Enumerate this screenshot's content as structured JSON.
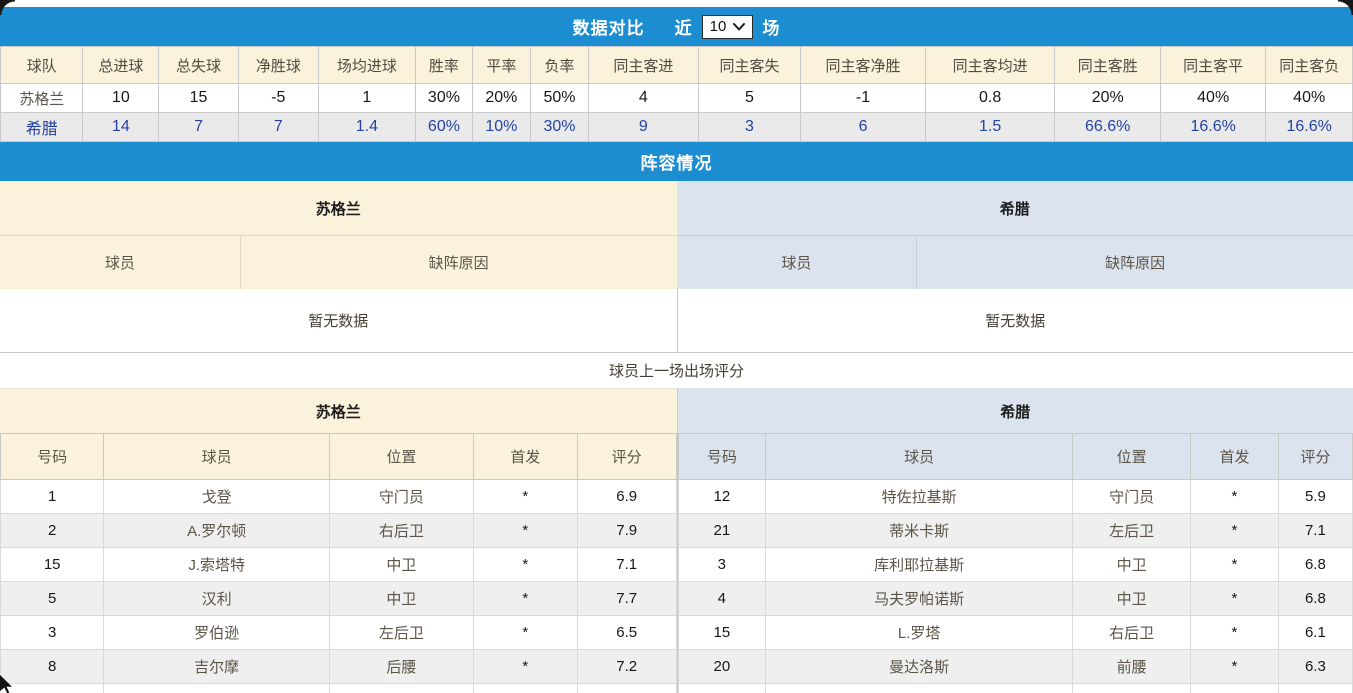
{
  "colors": {
    "accent_blue": "#1d8dd2",
    "beige_bg": "#fbf2dc",
    "bluegray_bg": "#dbe4ee",
    "alt_row_gray": "#efefef",
    "greece_row_bg": "#eaeaea",
    "greece_text_blue": "#2443a2",
    "header_text": "#514b40",
    "muted_text": "#5c5448",
    "border": "#c9c9c9"
  },
  "top_bar": {
    "title": "数据对比",
    "near_label": "近",
    "rounds_value": "10",
    "rounds_suffix": "场"
  },
  "comparison_table": {
    "headers": [
      "球队",
      "总进球",
      "总失球",
      "净胜球",
      "场均进球",
      "胜率",
      "平率",
      "负率",
      "同主客进",
      "同主客失",
      "同主客净胜",
      "同主客均进",
      "同主客胜",
      "同主客平",
      "同主客负"
    ],
    "rows": [
      {
        "team": "苏格兰",
        "values": [
          "10",
          "15",
          "-5",
          "1",
          "30%",
          "20%",
          "50%",
          "4",
          "5",
          "-1",
          "0.8",
          "20%",
          "40%",
          "40%"
        ]
      },
      {
        "team": "希腊",
        "values": [
          "14",
          "7",
          "7",
          "1.4",
          "60%",
          "10%",
          "30%",
          "9",
          "3",
          "6",
          "1.5",
          "66.6%",
          "16.6%",
          "16.6%"
        ]
      }
    ]
  },
  "lineup_section": {
    "title": "阵容情况",
    "left": {
      "team": "苏格兰",
      "columns": [
        "球员",
        "缺阵原因"
      ],
      "empty_text": "暂无数据"
    },
    "right": {
      "team": "希腊",
      "columns": [
        "球员",
        "缺阵原因"
      ],
      "empty_text": "暂无数据"
    }
  },
  "ratings_section": {
    "title": "球员上一场出场评分",
    "left": {
      "team": "苏格兰",
      "columns": [
        "号码",
        "球员",
        "位置",
        "首发",
        "评分"
      ],
      "players": [
        {
          "number": "1",
          "name": "戈登",
          "position": "守门员",
          "starter": "*",
          "rating": "6.9"
        },
        {
          "number": "2",
          "name": "A.罗尔顿",
          "position": "右后卫",
          "starter": "*",
          "rating": "7.9"
        },
        {
          "number": "15",
          "name": "J.索塔特",
          "position": "中卫",
          "starter": "*",
          "rating": "7.1"
        },
        {
          "number": "5",
          "name": "汉利",
          "position": "中卫",
          "starter": "*",
          "rating": "7.7"
        },
        {
          "number": "3",
          "name": "罗伯逊",
          "position": "左后卫",
          "starter": "*",
          "rating": "6.5"
        },
        {
          "number": "8",
          "name": "吉尔摩",
          "position": "后腰",
          "starter": "*",
          "rating": "7.2"
        }
      ]
    },
    "right": {
      "team": "希腊",
      "columns": [
        "号码",
        "球员",
        "位置",
        "首发",
        "评分"
      ],
      "players": [
        {
          "number": "12",
          "name": "特佐拉基斯",
          "position": "守门员",
          "starter": "*",
          "rating": "5.9"
        },
        {
          "number": "21",
          "name": "蒂米卡斯",
          "position": "左后卫",
          "starter": "*",
          "rating": "7.1"
        },
        {
          "number": "3",
          "name": "库利耶拉基斯",
          "position": "中卫",
          "starter": "*",
          "rating": "6.8"
        },
        {
          "number": "4",
          "name": "马夫罗帕诺斯",
          "position": "中卫",
          "starter": "*",
          "rating": "6.8"
        },
        {
          "number": "15",
          "name": "L.罗塔",
          "position": "右后卫",
          "starter": "*",
          "rating": "6.1"
        },
        {
          "number": "20",
          "name": "曼达洛斯",
          "position": "前腰",
          "starter": "*",
          "rating": "6.3"
        }
      ]
    }
  }
}
